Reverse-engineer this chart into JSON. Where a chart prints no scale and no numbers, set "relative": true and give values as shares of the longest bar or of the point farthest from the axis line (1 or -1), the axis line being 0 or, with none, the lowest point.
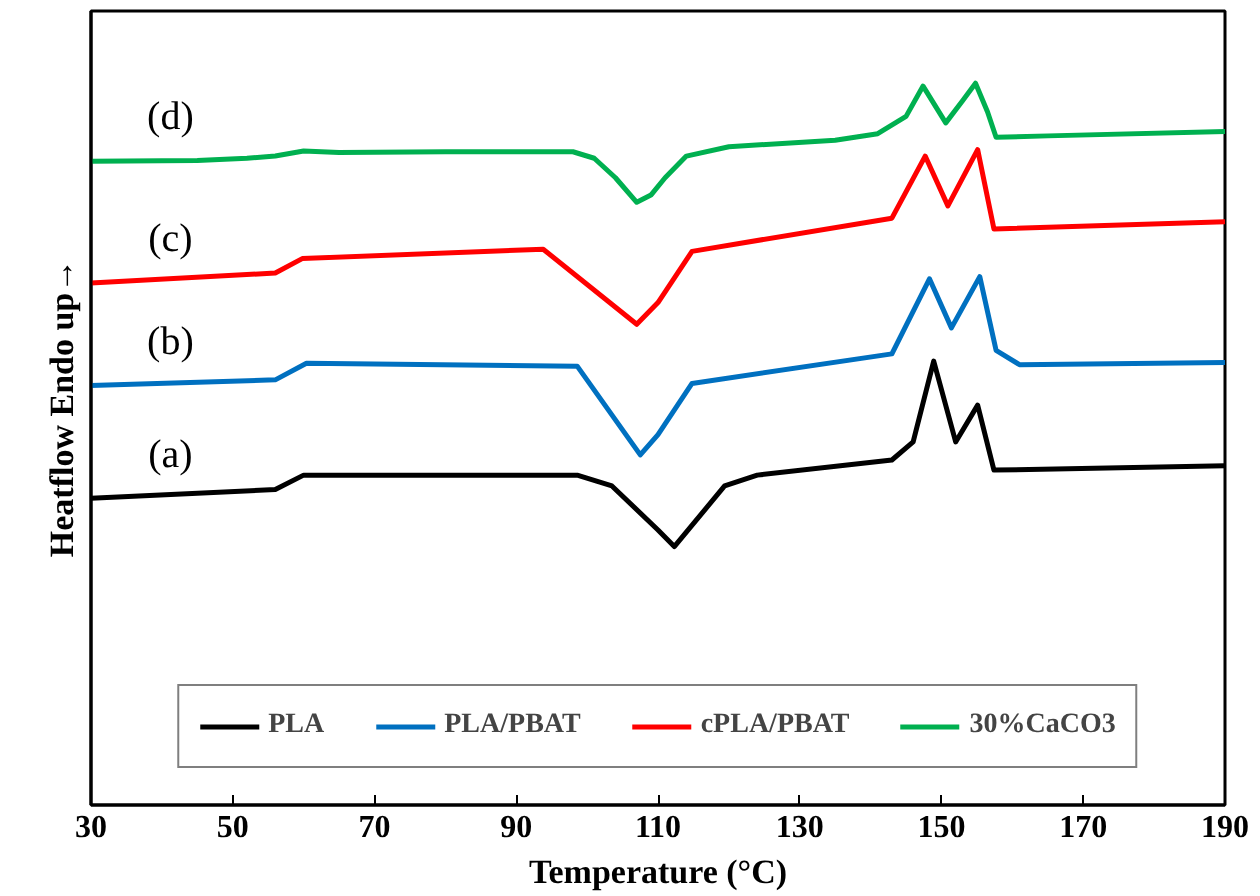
{
  "chart_data": {
    "type": "line",
    "xlabel": "Temperature (°C)",
    "ylabel": "Heatflow Endo up→",
    "relative": true,
    "xlim": [
      30,
      190
    ],
    "xticks": [
      30,
      50,
      70,
      90,
      110,
      130,
      150,
      170,
      190
    ],
    "grid": false,
    "legend": "bottom",
    "marker": "none",
    "line_style": "solid",
    "series": [
      {
        "name": "PLA",
        "color": "#000000",
        "x": [
          30,
          56,
          60,
          98.6,
          103.5,
          110,
          112.3,
          119.4,
          124,
          143,
          146,
          148.9,
          152,
          155.1,
          157.4,
          190
        ],
        "values": [
          0.425,
          0.437,
          0.457,
          0.457,
          0.442,
          0.381,
          0.358,
          0.442,
          0.457,
          0.478,
          0.503,
          0.615,
          0.503,
          0.554,
          0.464,
          0.47
        ]
      },
      {
        "name": "PLA/PBAT",
        "color": "#0070c0",
        "x": [
          30,
          56,
          60.4,
          98.6,
          107.5,
          110,
          114.8,
          143,
          148.3,
          151.4,
          155.4,
          157.7,
          161,
          190
        ],
        "values": [
          0.581,
          0.589,
          0.612,
          0.608,
          0.485,
          0.513,
          0.584,
          0.625,
          0.729,
          0.661,
          0.732,
          0.63,
          0.61,
          0.613
        ]
      },
      {
        "name": "cPLA/PBAT",
        "color": "#ff0000",
        "x": [
          30,
          56,
          59.8,
          93.8,
          107,
          110,
          114.8,
          143,
          147.7,
          150.9,
          155.1,
          157.4,
          190
        ],
        "values": [
          0.723,
          0.737,
          0.757,
          0.77,
          0.666,
          0.696,
          0.767,
          0.813,
          0.899,
          0.83,
          0.908,
          0.798,
          0.808
        ]
      },
      {
        "name": "30%CaCO3",
        "color": "#00b050",
        "x": [
          30,
          45,
          52,
          56,
          60,
          65,
          80,
          98,
          101,
          104,
          107,
          109,
          111,
          114,
          120,
          135,
          141,
          145,
          147.4,
          150.6,
          153,
          154.8,
          156.5,
          157.7,
          165,
          190
        ],
        "values": [
          0.892,
          0.893,
          0.896,
          0.899,
          0.906,
          0.904,
          0.905,
          0.905,
          0.896,
          0.869,
          0.835,
          0.845,
          0.869,
          0.899,
          0.912,
          0.921,
          0.93,
          0.954,
          0.996,
          0.945,
          0.976,
          1.0,
          0.96,
          0.925,
          0.927,
          0.933
        ]
      }
    ],
    "annotations": [
      "(d)",
      "(c)",
      "(b)",
      "(a)"
    ]
  }
}
